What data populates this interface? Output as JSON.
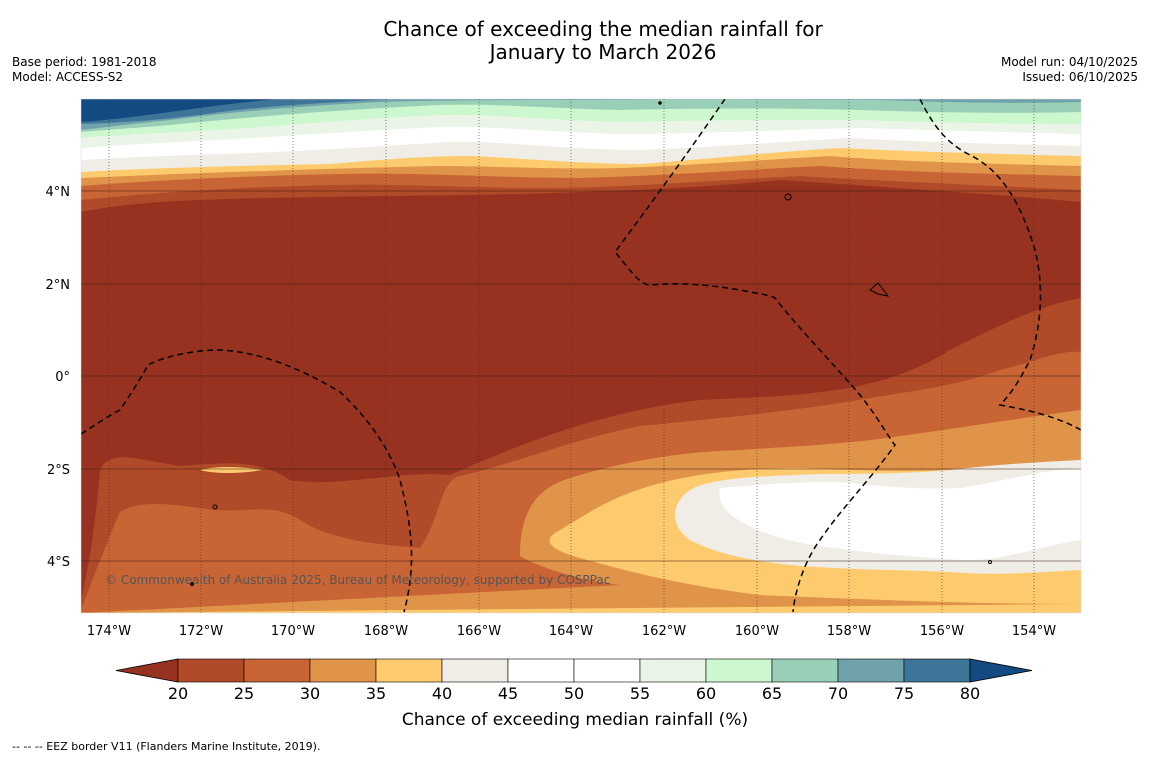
{
  "title": {
    "line1": "Chance of exceeding the median rainfall for",
    "line2": "January to March 2026"
  },
  "meta_left": {
    "base_period": "Base period: 1981-2018",
    "model": "Model: ACCESS-S2"
  },
  "meta_right": {
    "model_run": "Model run: 04/10/2025",
    "issued": "Issued: 06/10/2025"
  },
  "map": {
    "lon_labels": [
      "174°W",
      "172°W",
      "170°W",
      "168°W",
      "166°W",
      "164°W",
      "162°W",
      "160°W",
      "158°W",
      "156°W",
      "154°W"
    ],
    "lat_labels": [
      "4°N",
      "2°N",
      "0°",
      "2°S",
      "4°S"
    ],
    "copyright": "© Commonwealth of Australia 2025, Bureau of Meteorology, supported by COSPPac"
  },
  "colorbar": {
    "ticks": [
      "20",
      "25",
      "30",
      "35",
      "40",
      "45",
      "50",
      "55",
      "60",
      "65",
      "70",
      "75",
      "80"
    ],
    "colors": [
      "#b14a28",
      "#c96535",
      "#e0944a",
      "#fdcb6e",
      "#f0ece6",
      "#ffffff",
      "#ffffff",
      "#eaf5e8",
      "#ccf7cf",
      "#9acfb7",
      "#6fa2aa",
      "#3f7499"
    ],
    "low_color": "#983220",
    "high_color": "#144a82",
    "label": "Chance of exceeding median rainfall (%)"
  },
  "footnote": "--  --  -- EEZ border V11 (Flanders Marine Institute, 2019)."
}
